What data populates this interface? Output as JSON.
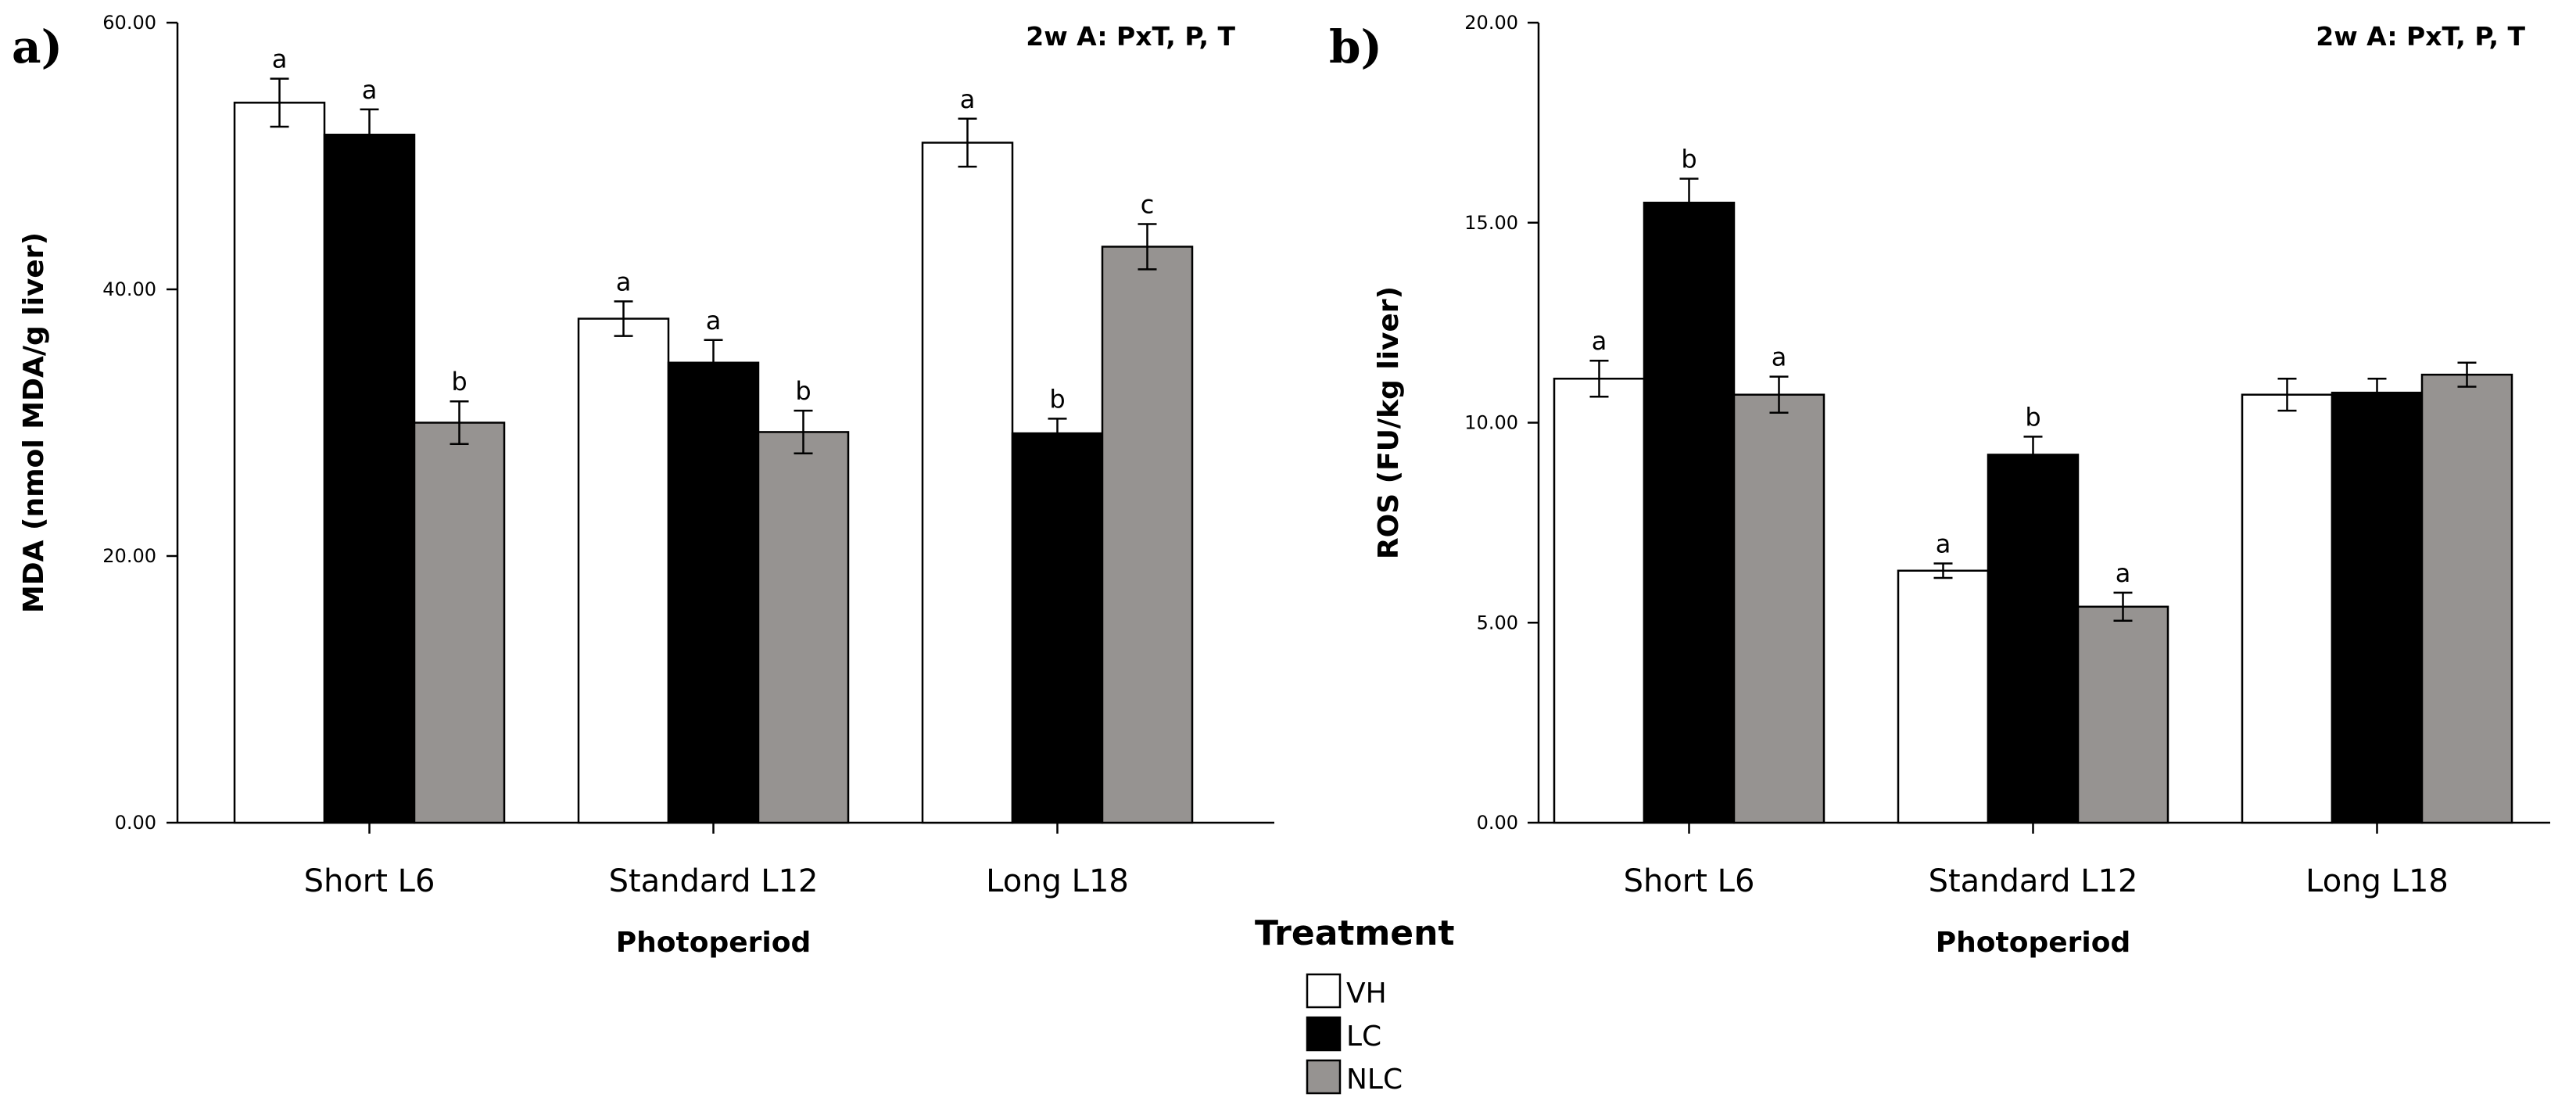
{
  "chart_data": [
    {
      "type": "bar",
      "panel": "a)",
      "annotation": "2w A: PxT, P, T",
      "ylabel": "MDA (nmol MDA/g liver)",
      "xlabel": "Photoperiod",
      "categories": [
        "Short L6",
        "Standard L12",
        "Long L18"
      ],
      "ylim": [
        0,
        60
      ],
      "yticks": [
        "0.00",
        "20.00",
        "40.00",
        "60.00"
      ],
      "series": [
        {
          "name": "VH",
          "color": "#ffffff",
          "values": [
            54.0,
            37.8,
            51.0
          ],
          "errors": [
            1.8,
            1.3,
            1.8
          ],
          "letters": [
            "a",
            "a",
            "a"
          ]
        },
        {
          "name": "LC",
          "color": "#000000",
          "values": [
            51.6,
            34.5,
            29.2
          ],
          "errors": [
            1.9,
            1.7,
            1.1
          ],
          "letters": [
            "a",
            "a",
            "b"
          ]
        },
        {
          "name": "NLC",
          "color": "#969391",
          "values": [
            30.0,
            29.3,
            43.2
          ],
          "errors": [
            1.6,
            1.6,
            1.7
          ],
          "letters": [
            "b",
            "b",
            "c"
          ]
        }
      ]
    },
    {
      "type": "bar",
      "panel": "b)",
      "annotation": "2w A: PxT, P, T",
      "ylabel": "ROS (FU/kg liver)",
      "xlabel": "Photoperiod",
      "categories": [
        "Short L6",
        "Standard L12",
        "Long L18"
      ],
      "ylim": [
        0,
        20
      ],
      "yticks": [
        "0.00",
        "5.00",
        "10.00",
        "15.00",
        "20.00"
      ],
      "series": [
        {
          "name": "VH",
          "color": "#ffffff",
          "values": [
            11.1,
            6.3,
            10.7
          ],
          "errors": [
            0.45,
            0.18,
            0.4
          ],
          "letters": [
            "a",
            "a",
            ""
          ]
        },
        {
          "name": "LC",
          "color": "#000000",
          "values": [
            15.5,
            9.2,
            10.75
          ],
          "errors": [
            0.6,
            0.45,
            0.35
          ],
          "letters": [
            "b",
            "b",
            ""
          ]
        },
        {
          "name": "NLC",
          "color": "#969391",
          "values": [
            10.7,
            5.4,
            11.2
          ],
          "errors": [
            0.45,
            0.35,
            0.3
          ],
          "letters": [
            "a",
            "a",
            ""
          ]
        }
      ]
    }
  ],
  "legend": {
    "title": "Treatment",
    "items": [
      {
        "label": "VH",
        "color": "#ffffff"
      },
      {
        "label": "LC",
        "color": "#000000"
      },
      {
        "label": "NLC",
        "color": "#969391"
      }
    ]
  }
}
